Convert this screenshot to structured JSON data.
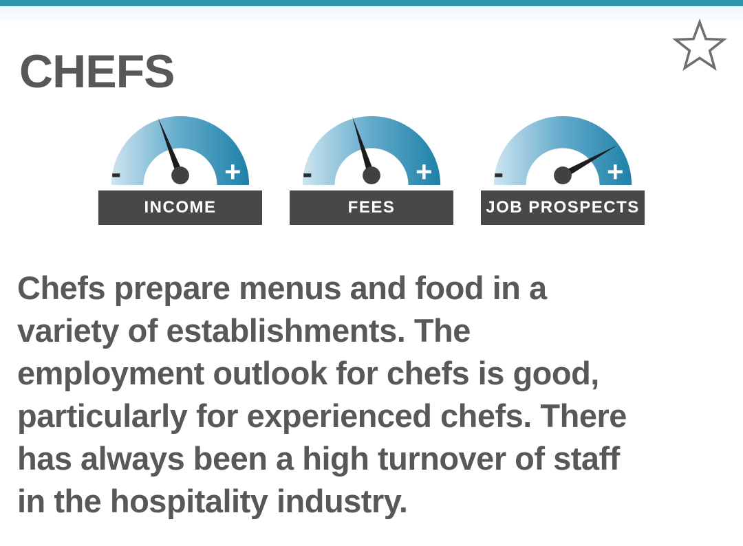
{
  "header": {
    "title": "CHEFS",
    "favorite_icon": "star-outline"
  },
  "gauges": [
    {
      "label": "INCOME",
      "needle_angle_deg": -21,
      "minus": "-",
      "plus": "+"
    },
    {
      "label": "FEES",
      "needle_angle_deg": -18,
      "minus": "-",
      "plus": "+"
    },
    {
      "label": "JOB PROSPECTS",
      "needle_angle_deg": 61,
      "minus": "-",
      "plus": "+"
    }
  ],
  "description": {
    "lines": [
      "Chefs prepare menus and food in a",
      "variety of establishments. The",
      "employment outlook for chefs is good,",
      "particularly for experienced chefs. There",
      "has always been a high turnover of staff",
      "in the hospitality industry."
    ]
  },
  "colors": {
    "accent": "#2e93ae",
    "text": "#57585a",
    "label_bar_bg": "#48484a",
    "label_bar_text": "#ffffff",
    "gauge_light": "#cde5f0",
    "gauge_mid": "#62aacb",
    "gauge_dark": "#1e81a8",
    "needle": "#1d1d1f",
    "hub": "#414144",
    "minus_sign": "#2b2b2b",
    "star_outline": "#6d6e71"
  }
}
